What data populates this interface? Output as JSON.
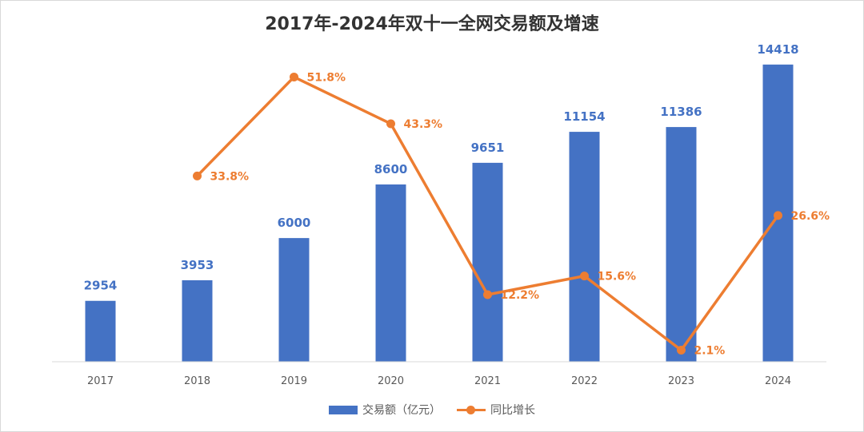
{
  "chart_data": {
    "type": "bar",
    "title": "2017年-2024年双十一全网交易额及增速",
    "categories": [
      "2017",
      "2018",
      "2019",
      "2020",
      "2021",
      "2022",
      "2023",
      "2024"
    ],
    "series": [
      {
        "name": "交易额（亿元）",
        "type": "bar",
        "color": "#4472c4",
        "values": [
          2954,
          3953,
          6000,
          8600,
          9651,
          11154,
          11386,
          14418
        ],
        "labels": [
          "2954",
          "3953",
          "6000",
          "8600",
          "9651",
          "11154",
          "11386",
          "14418"
        ]
      },
      {
        "name": "同比增长",
        "type": "line",
        "color": "#ed7d31",
        "values": [
          null,
          33.8,
          51.8,
          43.3,
          12.2,
          15.6,
          2.1,
          26.6
        ],
        "labels": [
          "",
          "33.8%",
          "51.8%",
          "43.3%",
          "12.2%",
          "15.6%",
          "2.1%",
          "26.6%"
        ]
      }
    ],
    "ylim": [
      0,
      16000
    ],
    "y2lim": [
      0,
      60
    ],
    "legend_position": "bottom",
    "grid": false
  },
  "legend": {
    "bar_label": "交易额（亿元）",
    "line_label": "同比增长"
  }
}
